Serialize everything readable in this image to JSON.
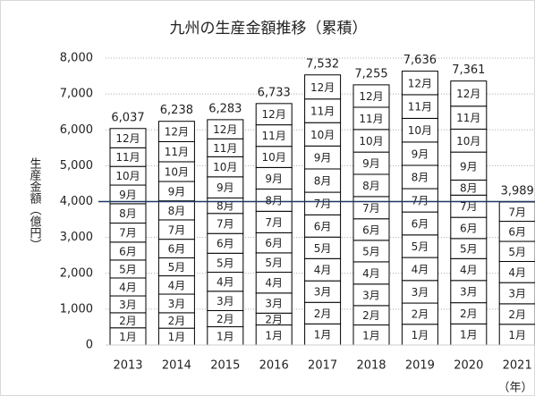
{
  "chart_data": {
    "type": "stacked_bar",
    "title": "九州の生産金額推移（累積）",
    "y_label": "生産金額（億円）",
    "x_unit": "（年）",
    "categories": [
      "2013",
      "2014",
      "2015",
      "2016",
      "2017",
      "2018",
      "2019",
      "2020",
      "2021"
    ],
    "series": [
      {
        "name": "1月",
        "color": "#ffffff",
        "values": [
          480,
          470,
          510,
          560,
          590,
          560,
          580,
          590,
          580
        ]
      },
      {
        "name": "2月",
        "color": "#ffffff",
        "values": [
          420,
          430,
          450,
          330,
          600,
          540,
          590,
          590,
          570
        ]
      },
      {
        "name": "3月",
        "color": "#ffffff",
        "values": [
          470,
          520,
          540,
          560,
          600,
          600,
          630,
          620,
          590
        ]
      },
      {
        "name": "4月",
        "color": "#ffffff",
        "values": [
          500,
          510,
          530,
          580,
          620,
          620,
          640,
          610,
          590
        ]
      },
      {
        "name": "5月",
        "color": "#ffffff",
        "values": [
          500,
          500,
          530,
          540,
          600,
          600,
          630,
          560,
          560
        ]
      },
      {
        "name": "6月",
        "color": "#ffffff",
        "values": [
          500,
          520,
          550,
          560,
          620,
          600,
          640,
          590,
          560
        ]
      },
      {
        "name": "7月",
        "color": "#ffffff",
        "values": [
          530,
          540,
          560,
          600,
          630,
          620,
          650,
          620,
          539
        ]
      },
      {
        "name": "8月",
        "color": "#ffffff",
        "values": [
          540,
          530,
          430,
          620,
          650,
          620,
          650,
          420,
          null
        ]
      },
      {
        "name": "9月",
        "color": "#ffffff",
        "values": [
          520,
          540,
          590,
          600,
          640,
          620,
          650,
          780,
          null
        ]
      },
      {
        "name": "10月",
        "color": "#ffffff",
        "values": [
          520,
          550,
          560,
          590,
          650,
          630,
          660,
          640,
          null
        ]
      },
      {
        "name": "11月",
        "color": "#ffffff",
        "values": [
          520,
          560,
          500,
          600,
          660,
          620,
          660,
          640,
          null
        ]
      },
      {
        "name": "12月",
        "color": "#ffffff",
        "values": [
          537,
          568,
          533,
          593,
          672,
          625,
          656,
          701,
          null
        ]
      }
    ],
    "totals": {
      "values": [
        6037,
        6238,
        6283,
        6733,
        7532,
        7255,
        7636,
        7361,
        3989
      ],
      "value_labels": [
        "6,037",
        "6,238",
        "6,283",
        "6,733",
        "7,532",
        "7,255",
        "7,636",
        "7,361",
        "3,989"
      ]
    },
    "reference_line": {
      "value": 4000,
      "color": "#1f3864"
    },
    "ylim": [
      0,
      8000
    ],
    "yticks": [
      0,
      {
        "value": 1000,
        "label": "1,000"
      },
      {
        "value": 2000,
        "label": "2,000"
      },
      {
        "value": 3000,
        "label": "3,000"
      },
      {
        "value": 4000,
        "label": "4,000"
      },
      {
        "value": 5000,
        "label": "5,000"
      },
      {
        "value": 6000,
        "label": "6,000"
      },
      {
        "value": 7000,
        "label": "7,000"
      },
      {
        "value": 8000,
        "label": "8,000"
      }
    ],
    "grid": true
  }
}
